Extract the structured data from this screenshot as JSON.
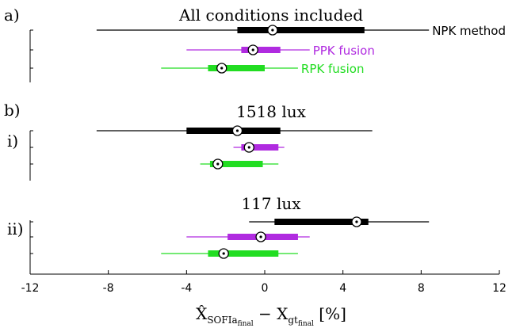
{
  "chart_data": [
    {
      "type": "boxplot",
      "panel": "a)",
      "sublabel": "",
      "title": "All conditions included",
      "series": [
        {
          "name": "NPK method",
          "color": "#000000",
          "whisker": [
            -8.6,
            8.4
          ],
          "box": [
            -1.4,
            5.1
          ],
          "median": 0.4
        },
        {
          "name": "PPK fusion",
          "color": "#B02BE0",
          "whisker": [
            -4.0,
            2.3
          ],
          "box": [
            -1.2,
            0.8
          ],
          "median": -0.6
        },
        {
          "name": "RPK fusion",
          "color": "#22DD22",
          "whisker": [
            -5.3,
            1.7
          ],
          "box": [
            -2.9,
            0.0
          ],
          "median": -2.2
        }
      ]
    },
    {
      "type": "boxplot",
      "panel": "b)",
      "sublabel": "i)",
      "title": "1518 lux",
      "series": [
        {
          "name": "",
          "color": "#000000",
          "whisker": [
            -8.6,
            5.5
          ],
          "box": [
            -4.0,
            0.8
          ],
          "median": -1.4
        },
        {
          "name": "",
          "color": "#B02BE0",
          "whisker": [
            -1.6,
            1.0
          ],
          "box": [
            -1.2,
            0.7
          ],
          "median": -0.8
        },
        {
          "name": "",
          "color": "#22DD22",
          "whisker": [
            -3.3,
            0.7
          ],
          "box": [
            -2.8,
            -0.1
          ],
          "median": -2.4
        }
      ]
    },
    {
      "type": "boxplot",
      "panel": "",
      "sublabel": "ii)",
      "title": "117 lux",
      "series": [
        {
          "name": "",
          "color": "#000000",
          "whisker": [
            -0.8,
            8.4
          ],
          "box": [
            0.5,
            5.3
          ],
          "median": 4.7
        },
        {
          "name": "",
          "color": "#B02BE0",
          "whisker": [
            -4.0,
            2.3
          ],
          "box": [
            -1.9,
            1.7
          ],
          "median": -0.2
        },
        {
          "name": "",
          "color": "#22DD22",
          "whisker": [
            -5.3,
            1.7
          ],
          "box": [
            -2.9,
            0.7
          ],
          "median": -2.1
        }
      ]
    }
  ],
  "axis": {
    "xlim": [
      -12,
      12
    ],
    "ticks": [
      "-12",
      "-8",
      "-4",
      "0",
      "4",
      "8",
      "12"
    ],
    "xlabel_main": "X̂",
    "xlabel_main_sub": "SOFIa",
    "xlabel_main_subsub": "final",
    "xlabel_minus": " − X",
    "xlabel_ref_sub": "gt",
    "xlabel_ref_subsub": "final",
    "xlabel_unit": " [%]"
  }
}
